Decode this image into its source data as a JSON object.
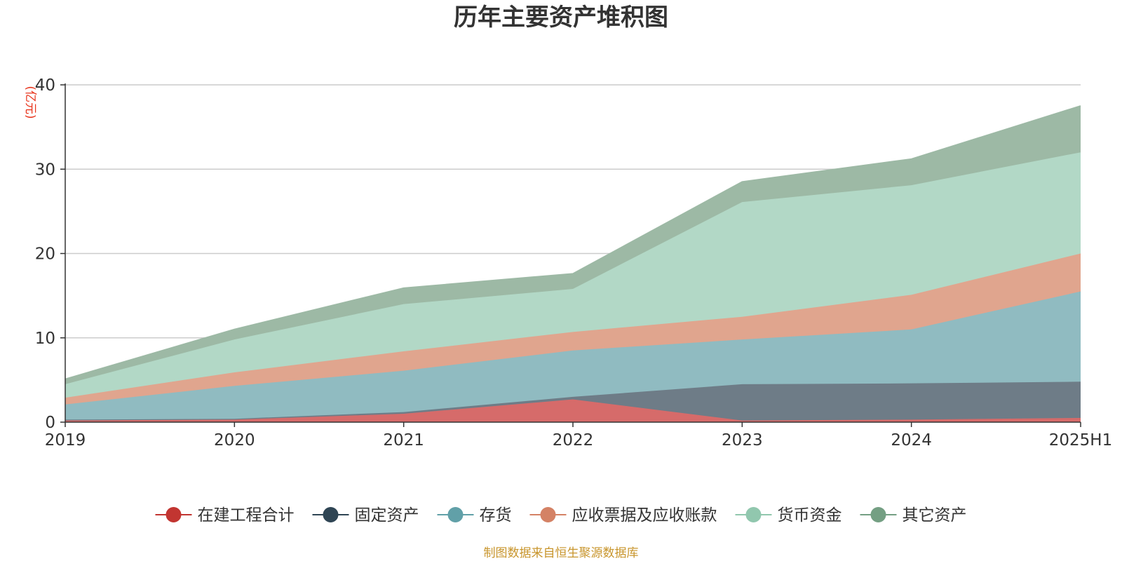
{
  "chart_data": {
    "type": "area",
    "stacked": true,
    "title": "历年主要资产堆积图",
    "y_unit_label": "(亿元)",
    "categories": [
      "2019",
      "2020",
      "2021",
      "2022",
      "2023",
      "2024",
      "2025H1"
    ],
    "ylim": [
      0,
      40
    ],
    "yticks": [
      0,
      10,
      20,
      30,
      40
    ],
    "grid": true,
    "legend_position": "bottom",
    "series": [
      {
        "name": "在建工程合计",
        "color": "#c23531",
        "fill": "#d66b6a",
        "values": [
          0.2,
          0.3,
          1.0,
          2.7,
          0.2,
          0.3,
          0.5
        ]
      },
      {
        "name": "固定资产",
        "color": "#2f4554",
        "fill": "#6e7c87",
        "values": [
          0.1,
          0.1,
          0.2,
          0.3,
          4.3,
          4.3,
          4.3
        ]
      },
      {
        "name": "存货",
        "color": "#61a0a8",
        "fill": "#90bbc1",
        "values": [
          1.8,
          3.9,
          4.9,
          5.5,
          5.3,
          6.4,
          10.7
        ]
      },
      {
        "name": "应收票据及应收账款",
        "color": "#d48265",
        "fill": "#e0a58e",
        "values": [
          0.8,
          1.6,
          2.3,
          2.2,
          2.7,
          4.1,
          4.5
        ]
      },
      {
        "name": "货币资金",
        "color": "#91c7ae",
        "fill": "#b2d8c6",
        "values": [
          1.6,
          3.9,
          5.6,
          5.1,
          13.6,
          13.0,
          12.0
        ]
      },
      {
        "name": "其它资产",
        "color": "#749f83",
        "fill": "#9db9a5",
        "values": [
          0.6,
          1.2,
          1.9,
          1.8,
          2.4,
          3.1,
          5.5
        ]
      }
    ]
  },
  "source_note": "制图数据来自恒生聚源数据库"
}
